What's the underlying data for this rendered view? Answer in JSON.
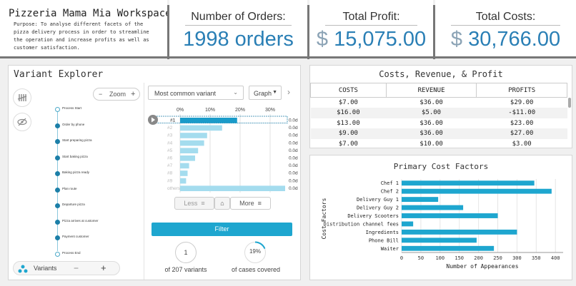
{
  "workspace": {
    "title": "Pizzeria Mama Mia Workspace",
    "purpose": "Purpose: To analyse different facets of the pizza delivery process in order to streamline the operation and increase profits as well as customer satisfaction."
  },
  "kpis": {
    "orders": {
      "title": "Number of Orders:",
      "value": "1998 orders"
    },
    "profit": {
      "title": "Total Profit:",
      "currency": "$",
      "value": "15,075.00"
    },
    "costs": {
      "title": "Total Costs:",
      "currency": "$",
      "value": "30,766.00"
    }
  },
  "variant_explorer": {
    "title": "Variant Explorer",
    "zoom_label": "Zoom",
    "zoom_out": "−",
    "zoom_in": "+",
    "dropdown_value": "Most common variant",
    "graph_label": "Graph",
    "axis_ticks": [
      "0%",
      "10%",
      "20%",
      "30%"
    ],
    "variants": [
      {
        "label": "#1",
        "pct": 19,
        "duration": "0.0d"
      },
      {
        "label": "#2",
        "pct": 14,
        "duration": "0.0d"
      },
      {
        "label": "#3",
        "pct": 9,
        "duration": "0.0d"
      },
      {
        "label": "#4",
        "pct": 8,
        "duration": "0.0d"
      },
      {
        "label": "#5",
        "pct": 6,
        "duration": "0.0d"
      },
      {
        "label": "#6",
        "pct": 5,
        "duration": "0.0d"
      },
      {
        "label": "#7",
        "pct": 3,
        "duration": "0.0d"
      },
      {
        "label": "#8",
        "pct": 2.5,
        "duration": "0.0d"
      },
      {
        "label": "#9",
        "pct": 2,
        "duration": "0.0d"
      },
      {
        "label": "others",
        "pct": 35,
        "duration": "0.0d"
      }
    ],
    "less_label": "Less",
    "more_label": "More",
    "filter_label": "Filter",
    "variant_count": "1",
    "variant_count_caption": "of 207 variants",
    "cases_pct": "19%",
    "cases_fraction": 0.19,
    "cases_caption": "of cases covered",
    "variants_label": "Variants",
    "minus_label": "−",
    "plus_label": "+",
    "process_steps": [
      "Process Start",
      "Order by phone",
      "Start preparing pizza",
      "Start baking pizza",
      "Baking pizza ready",
      "Plan route",
      "Departure pizza",
      "Pizza arrives at customer",
      "Payment customer",
      "Process End"
    ]
  },
  "costs_table": {
    "title": "Costs, Revenue, & Profit",
    "columns": [
      "COSTS",
      "REVENUE",
      "PROFITS"
    ],
    "rows": [
      [
        "$7.00",
        "$36.00",
        "$29.00"
      ],
      [
        "$16.00",
        "$5.00",
        "-$11.00"
      ],
      [
        "$13.00",
        "$36.00",
        "$23.00"
      ],
      [
        "$9.00",
        "$36.00",
        "$27.00"
      ],
      [
        "$7.00",
        "$10.00",
        "$3.00"
      ]
    ]
  },
  "chart_data": {
    "type": "bar",
    "orientation": "horizontal",
    "title": "Primary Cost Factors",
    "categories": [
      "Chef 1",
      "Chef 2",
      "Delivery Guy 1",
      "Delivery Guy 2",
      "Delivery Scooters",
      "Distribution channel fees",
      "Ingredients",
      "Phone Bill",
      "Waiter"
    ],
    "values": [
      345,
      390,
      95,
      160,
      250,
      30,
      300,
      195,
      240
    ],
    "xlabel": "Number of Appearances",
    "ylabel": "Cost Factors",
    "xlim": [
      0,
      420
    ],
    "xticks": [
      0,
      50,
      100,
      150,
      200,
      250,
      300,
      350,
      400
    ],
    "grid": true,
    "color": "#1ea6cf"
  }
}
